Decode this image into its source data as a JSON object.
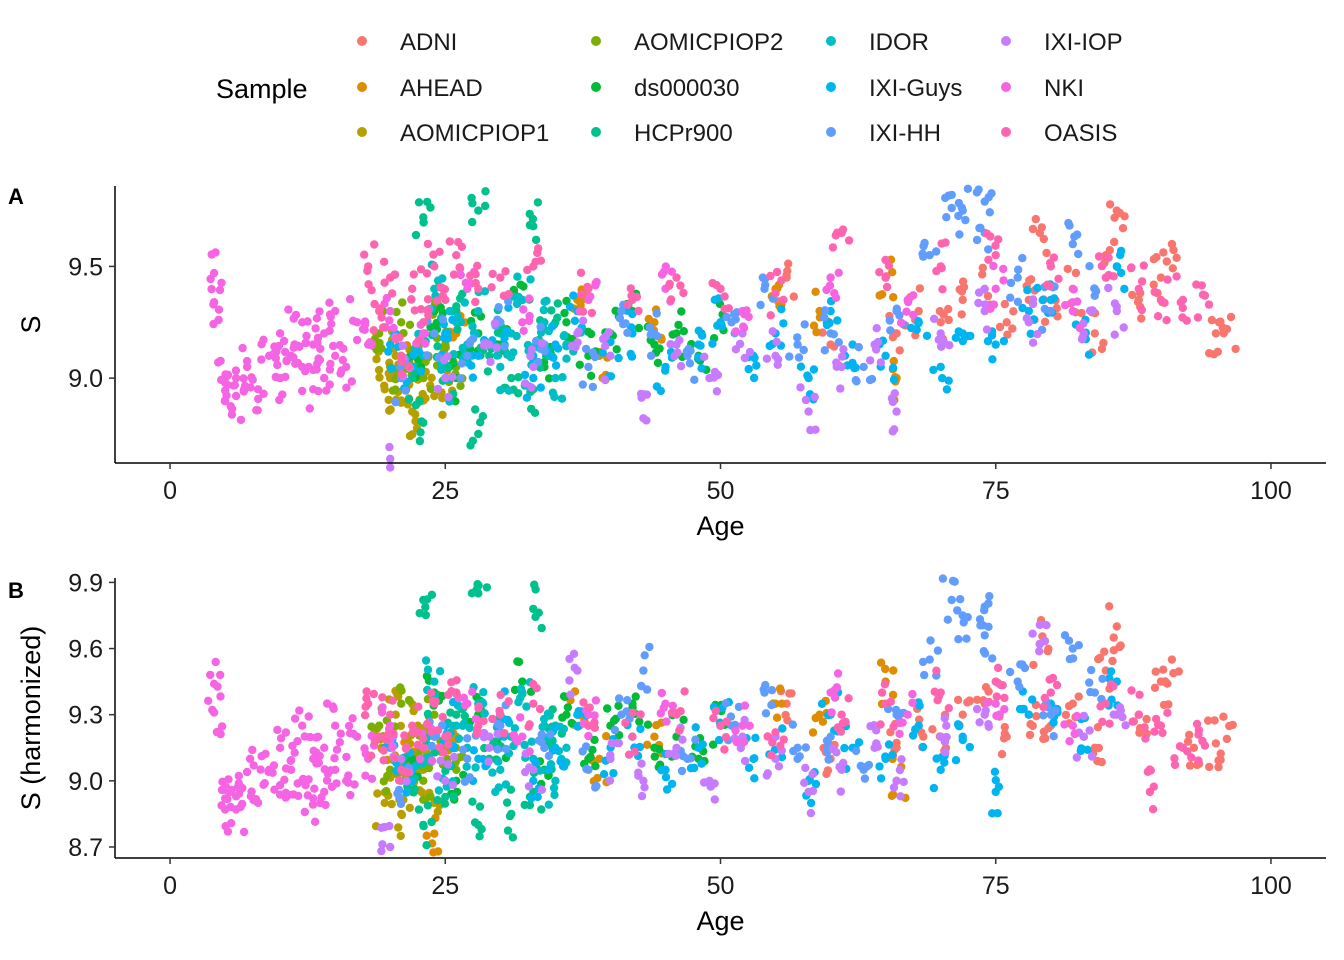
{
  "legend": {
    "title": "Sample",
    "entries": [
      {
        "name": "ADNI",
        "color": "#F8766D"
      },
      {
        "name": "AHEAD",
        "color": "#DE8C00"
      },
      {
        "name": "AOMICPIOP1",
        "color": "#B79F00"
      },
      {
        "name": "AOMICPIOP2",
        "color": "#7CAE00"
      },
      {
        "name": "ds000030",
        "color": "#00BA38"
      },
      {
        "name": "HCPr900",
        "color": "#00C08B"
      },
      {
        "name": "IDOR",
        "color": "#00BFC4"
      },
      {
        "name": "IXI-Guys",
        "color": "#00B4F0"
      },
      {
        "name": "IXI-HH",
        "color": "#619CFF"
      },
      {
        "name": "IXI-IOP",
        "color": "#C77CFF"
      },
      {
        "name": "NKI",
        "color": "#F564E3"
      },
      {
        "name": "OASIS",
        "color": "#FF64B0"
      }
    ]
  },
  "chart_data": [
    {
      "panel": "A",
      "type": "scatter",
      "xlabel": "Age",
      "ylabel": "S",
      "xlim": [
        -5,
        105
      ],
      "ylim": [
        8.62,
        9.86
      ],
      "xticks": [
        0,
        25,
        50,
        75,
        100
      ],
      "yticks": [
        9.0,
        9.5
      ],
      "grid": false,
      "legend_position": "top",
      "series": [
        {
          "name": "ADNI",
          "x": [
            56,
            60,
            66,
            68,
            70,
            72,
            74,
            76,
            78,
            79,
            80,
            82,
            84,
            85,
            86,
            88,
            90,
            91,
            95,
            96
          ],
          "y": [
            9.45,
            9.15,
            9.2,
            9.3,
            9.25,
            9.35,
            9.4,
            9.25,
            9.35,
            9.65,
            9.3,
            9.4,
            9.2,
            9.55,
            9.75,
            9.35,
            9.45,
            9.6,
            9.2,
            9.22
          ]
        },
        {
          "name": "AHEAD",
          "x": [
            22,
            26,
            37,
            39,
            44,
            55,
            59,
            65,
            66
          ],
          "y": [
            9.1,
            9.2,
            9.35,
            9.1,
            9.25,
            9.4,
            9.3,
            9.45,
            9.0
          ]
        },
        {
          "name": "AOMICPIOP1",
          "x": [
            19,
            19.5,
            20,
            20.5,
            21,
            21.5,
            22,
            22.5,
            23,
            24,
            25
          ],
          "y": [
            9.15,
            8.95,
            9.0,
            9.1,
            8.9,
            9.05,
            8.85,
            9.0,
            9.1,
            8.92,
            9.05
          ]
        },
        {
          "name": "AOMICPIOP2",
          "x": [
            19,
            20,
            21,
            22,
            23,
            24,
            25,
            26
          ],
          "y": [
            9.2,
            9.05,
            9.25,
            9.1,
            9.0,
            9.3,
            9.15,
            9.05
          ]
        },
        {
          "name": "ds000030",
          "x": [
            22,
            24,
            26,
            28,
            30,
            32,
            34,
            36,
            38,
            40,
            42,
            44,
            46,
            48,
            50
          ],
          "y": [
            9.1,
            9.3,
            9.0,
            9.2,
            9.15,
            9.35,
            9.05,
            9.25,
            9.1,
            9.2,
            9.3,
            9.15,
            9.2,
            9.1,
            9.25
          ]
        },
        {
          "name": "HCPr900",
          "x": [
            22,
            23,
            23,
            24,
            25,
            26,
            28,
            28,
            29,
            30,
            31,
            33,
            33,
            34,
            35
          ],
          "y": [
            9.0,
            9.72,
            8.8,
            9.2,
            9.0,
            9.3,
            9.75,
            8.75,
            9.1,
            9.2,
            9.0,
            9.68,
            8.95,
            9.15,
            9.25
          ]
        },
        {
          "name": "IDOR",
          "x": [
            23,
            24,
            25,
            26,
            27,
            28,
            30,
            31,
            32,
            33,
            34,
            35,
            36
          ],
          "y": [
            9.1,
            9.4,
            9.0,
            9.25,
            9.15,
            9.3,
            9.05,
            9.2,
            9.35,
            9.1,
            9.25,
            9.0,
            9.15
          ]
        },
        {
          "name": "IXI-Guys",
          "x": [
            20,
            22,
            25,
            28,
            30,
            33,
            35,
            37,
            40,
            42,
            45,
            48,
            50,
            53,
            55,
            58,
            60,
            62,
            65,
            68,
            70,
            72,
            75,
            78,
            80,
            83,
            86
          ],
          "y": [
            9.15,
            9.05,
            9.2,
            9.1,
            9.25,
            9.0,
            9.15,
            9.3,
            9.1,
            9.2,
            9.05,
            9.15,
            9.25,
            9.1,
            9.2,
            9.0,
            9.3,
            9.15,
            9.1,
            9.25,
            9.05,
            9.2,
            9.15,
            9.3,
            9.35,
            9.2,
            9.5
          ]
        },
        {
          "name": "IXI-HH",
          "x": [
            21,
            24,
            27,
            30,
            34,
            38,
            41,
            44,
            47,
            51,
            54,
            57,
            60,
            63,
            66,
            69,
            71,
            72,
            74,
            74,
            77,
            80,
            82,
            84
          ],
          "y": [
            9.0,
            9.2,
            9.1,
            9.25,
            9.15,
            9.05,
            9.3,
            9.2,
            9.1,
            9.25,
            9.4,
            9.15,
            9.2,
            9.05,
            9.3,
            9.55,
            9.82,
            9.75,
            9.79,
            9.65,
            9.45,
            9.3,
            9.6,
            9.4
          ]
        },
        {
          "name": "IXI-IOP",
          "x": [
            20,
            21,
            25,
            29,
            33,
            37,
            40,
            43,
            46,
            49,
            52,
            55,
            58,
            61,
            64,
            66,
            70,
            74,
            78,
            83,
            86
          ],
          "y": [
            8.6,
            9.1,
            9.0,
            9.15,
            9.05,
            9.2,
            9.1,
            8.82,
            9.15,
            9.0,
            9.2,
            9.1,
            8.85,
            9.05,
            9.15,
            8.85,
            9.2,
            9.3,
            9.25,
            9.2,
            9.3
          ]
        },
        {
          "name": "NKI",
          "x": [
            4,
            4,
            5,
            5,
            6,
            6,
            7,
            8,
            9,
            10,
            10,
            11,
            12,
            12,
            13,
            13,
            14,
            14,
            15,
            15,
            16,
            17,
            18,
            20,
            23,
            27,
            32,
            38,
            45,
            52,
            60,
            67,
            75,
            82
          ],
          "y": [
            9.47,
            9.34,
            8.98,
            8.9,
            8.92,
            9.0,
            9.05,
            8.95,
            9.1,
            9.2,
            9.0,
            9.1,
            9.25,
            9.05,
            9.15,
            8.95,
            9.2,
            9.0,
            9.3,
            9.1,
            9.05,
            9.25,
            9.15,
            9.3,
            9.2,
            9.4,
            9.25,
            9.35,
            9.4,
            9.3,
            9.45,
            9.35,
            9.4,
            9.3
          ]
        },
        {
          "name": "OASIS",
          "x": [
            18,
            19,
            20,
            21,
            22,
            23,
            24,
            25,
            26,
            28,
            30,
            33,
            38,
            42,
            46,
            50,
            55,
            61,
            65,
            70,
            75,
            80,
            85,
            88,
            90,
            92,
            94
          ],
          "y": [
            9.5,
            9.3,
            9.45,
            9.1,
            9.4,
            9.25,
            9.5,
            9.35,
            9.55,
            9.4,
            9.45,
            9.5,
            9.4,
            9.35,
            9.45,
            9.4,
            9.38,
            9.65,
            9.45,
            9.5,
            9.55,
            9.5,
            9.45,
            9.4,
            9.35,
            9.35,
            9.37
          ]
        }
      ]
    },
    {
      "panel": "B",
      "type": "scatter",
      "xlabel": "Age",
      "ylabel": "S (harmonized)",
      "xlim": [
        -5,
        105
      ],
      "ylim": [
        8.65,
        9.92
      ],
      "xticks": [
        0,
        25,
        50,
        75,
        100
      ],
      "yticks": [
        8.7,
        9.0,
        9.3,
        9.6,
        9.9
      ],
      "grid": false,
      "legend_position": "top",
      "series": [
        {
          "name": "ADNI",
          "x": [
            56,
            60,
            66,
            68,
            70,
            72,
            74,
            76,
            78,
            79,
            80,
            82,
            84,
            85,
            86,
            88,
            90,
            91,
            93,
            95,
            96
          ],
          "y": [
            9.35,
            9.1,
            9.15,
            9.25,
            9.2,
            9.3,
            9.35,
            9.2,
            9.3,
            9.62,
            9.25,
            9.35,
            9.15,
            9.5,
            9.7,
            9.3,
            9.45,
            9.55,
            9.15,
            9.17,
            9.19
          ]
        },
        {
          "name": "AHEAD",
          "x": [
            22,
            24,
            26,
            37,
            39,
            44,
            55,
            59,
            65,
            66
          ],
          "y": [
            9.1,
            8.76,
            9.2,
            9.3,
            9.1,
            9.2,
            9.35,
            9.3,
            9.45,
            9.0
          ]
        },
        {
          "name": "AOMICPIOP1",
          "x": [
            19,
            19.5,
            20,
            20.5,
            21,
            21.5,
            22,
            22.5,
            23,
            24
          ],
          "y": [
            9.2,
            8.9,
            9.05,
            9.3,
            8.85,
            9.1,
            8.95,
            9.25,
            9.05,
            8.9
          ]
        },
        {
          "name": "AOMICPIOP2",
          "x": [
            19,
            20,
            21,
            22,
            23,
            24,
            25,
            26
          ],
          "y": [
            9.25,
            9.05,
            9.35,
            9.1,
            9.0,
            9.3,
            9.15,
            9.05
          ]
        },
        {
          "name": "ds000030",
          "x": [
            22,
            24,
            26,
            28,
            30,
            32,
            34,
            36,
            38,
            40,
            42,
            44,
            46,
            48,
            50
          ],
          "y": [
            9.1,
            9.4,
            9.0,
            9.3,
            9.15,
            9.45,
            9.05,
            9.3,
            9.1,
            9.25,
            9.35,
            9.15,
            9.2,
            9.1,
            9.25
          ]
        },
        {
          "name": "HCPr900",
          "x": [
            22,
            23,
            23,
            24,
            25,
            26,
            28,
            28,
            29,
            30,
            31,
            33,
            33,
            34,
            35
          ],
          "y": [
            9.0,
            9.82,
            8.8,
            9.2,
            9.0,
            9.3,
            9.85,
            8.8,
            9.1,
            9.2,
            8.85,
            9.78,
            8.95,
            9.15,
            9.25
          ]
        },
        {
          "name": "IDOR",
          "x": [
            23,
            24,
            25,
            26,
            27,
            28,
            30,
            31,
            32,
            33,
            34,
            35,
            36
          ],
          "y": [
            9.1,
            9.45,
            9.0,
            9.25,
            9.15,
            9.35,
            9.05,
            9.2,
            9.4,
            9.1,
            9.25,
            9.0,
            9.15
          ]
        },
        {
          "name": "IXI-Guys",
          "x": [
            20,
            22,
            25,
            28,
            30,
            33,
            35,
            37,
            40,
            42,
            45,
            48,
            50,
            53,
            55,
            58,
            60,
            62,
            65,
            68,
            70,
            72,
            75,
            78,
            80,
            83,
            86
          ],
          "y": [
            9.15,
            9.05,
            9.25,
            9.1,
            9.3,
            9.0,
            9.15,
            9.3,
            9.1,
            9.2,
            9.05,
            9.15,
            9.25,
            9.1,
            9.2,
            9.0,
            9.3,
            9.15,
            9.1,
            9.25,
            9.05,
            9.2,
            8.95,
            9.3,
            9.35,
            9.2,
            9.45
          ]
        },
        {
          "name": "IXI-HH",
          "x": [
            21,
            24,
            27,
            30,
            34,
            38,
            41,
            43,
            47,
            51,
            54,
            57,
            60,
            63,
            66,
            69,
            71,
            72,
            74,
            74,
            77,
            80,
            82,
            84
          ],
          "y": [
            9.0,
            9.2,
            9.1,
            9.25,
            9.15,
            9.05,
            9.3,
            9.5,
            9.1,
            9.25,
            9.4,
            9.15,
            9.2,
            9.05,
            9.3,
            9.55,
            9.82,
            9.75,
            9.79,
            9.66,
            9.45,
            9.3,
            9.6,
            9.4
          ]
        },
        {
          "name": "IXI-IOP",
          "x": [
            20,
            21,
            25,
            29,
            33,
            37,
            40,
            43,
            46,
            49,
            52,
            55,
            58,
            61,
            64,
            66,
            70,
            74,
            79,
            83,
            86
          ],
          "y": [
            8.7,
            9.1,
            9.0,
            9.15,
            9.05,
            9.5,
            9.1,
            9.0,
            9.15,
            9.0,
            9.2,
            9.1,
            8.95,
            9.05,
            9.15,
            9.0,
            9.2,
            9.3,
            9.62,
            9.2,
            9.3
          ]
        },
        {
          "name": "NKI",
          "x": [
            4,
            4,
            5,
            5,
            6,
            6,
            7,
            8,
            9,
            10,
            10,
            11,
            12,
            12,
            13,
            13,
            14,
            14,
            15,
            15,
            16,
            17,
            18,
            20,
            23,
            27,
            32,
            38,
            45,
            52,
            60,
            67,
            75,
            82
          ],
          "y": [
            9.44,
            9.31,
            8.92,
            8.87,
            8.87,
            8.93,
            9.04,
            8.9,
            9.05,
            9.15,
            8.98,
            9.05,
            9.25,
            9.0,
            9.1,
            8.92,
            9.15,
            8.95,
            9.25,
            9.05,
            9.0,
            9.2,
            9.1,
            9.25,
            9.15,
            9.35,
            9.2,
            9.3,
            9.35,
            9.25,
            9.4,
            9.3,
            9.35,
            9.25
          ]
        },
        {
          "name": "OASIS",
          "x": [
            18,
            19,
            20,
            21,
            22,
            23,
            24,
            25,
            26,
            28,
            30,
            33,
            38,
            42,
            46,
            50,
            55,
            61,
            65,
            70,
            75,
            80,
            85,
            88,
            89,
            90,
            92,
            94
          ],
          "y": [
            9.35,
            9.2,
            9.3,
            9.05,
            9.25,
            9.15,
            9.35,
            9.2,
            9.4,
            9.25,
            9.3,
            9.35,
            9.25,
            9.2,
            9.3,
            9.25,
            9.22,
            9.3,
            9.35,
            9.4,
            9.45,
            9.4,
            9.35,
            9.3,
            8.95,
            9.25,
            9.15,
            9.16
          ]
        }
      ]
    }
  ]
}
